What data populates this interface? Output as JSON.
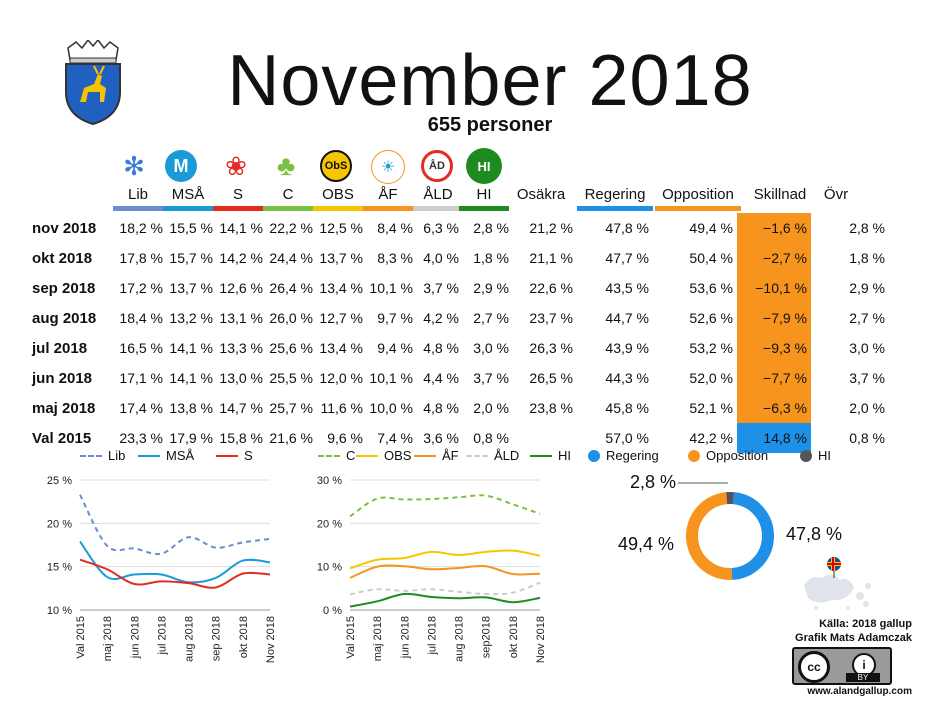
{
  "title": "November 2018",
  "subtitle": "655 personer",
  "colors": {
    "Lib": "#6b8ccf",
    "MSÅ": "#1a9bd7",
    "S": "#e32b20",
    "C": "#7ac143",
    "OBS": "#f7c600",
    "ÅF": "#f7941d",
    "ÅLD": "#cccccc",
    "HI": "#1f8a1f",
    "Regering": "#1e90e8",
    "Opposition": "#f7941d",
    "HIdonut": "#555555"
  },
  "icons": {
    "Lib": "snowflake-icon",
    "MSÅ": "m-logo-icon",
    "S": "rose-icon",
    "C": "clover-icon",
    "OBS": "obs-logo-icon",
    "ÅF": "af-logo-icon",
    "ÅLD": "ald-logo-icon",
    "HI": "hi-logo-icon"
  },
  "icon_text": {
    "OBS": "ObS",
    "ÅLD": "ÅD",
    "HI": "HI"
  },
  "table": {
    "headers": [
      "Lib",
      "MSÅ",
      "S",
      "C",
      "OBS",
      "ÅF",
      "ÅLD",
      "HI",
      "Osäkra",
      "Regering",
      "Opposition",
      "Skillnad",
      "Övr"
    ],
    "rows": [
      {
        "label": "nov 2018",
        "values": [
          "18,2 %",
          "15,5 %",
          "14,1 %",
          "22,2 %",
          "12,5 %",
          "8,4 %",
          "6,3 %",
          "2,8 %",
          "21,2 %",
          "47,8 %",
          "49,4 %",
          "−1,6 %",
          "2,8 %"
        ]
      },
      {
        "label": "okt 2018",
        "values": [
          "17,8 %",
          "15,7 %",
          "14,2 %",
          "24,4 %",
          "13,7 %",
          "8,3 %",
          "4,0 %",
          "1,8 %",
          "21,1 %",
          "47,7 %",
          "50,4 %",
          "−2,7 %",
          "1,8 %"
        ]
      },
      {
        "label": "sep 2018",
        "values": [
          "17,2 %",
          "13,7 %",
          "12,6 %",
          "26,4 %",
          "13,4 %",
          "10,1 %",
          "3,7 %",
          "2,9 %",
          "22,6 %",
          "43,5 %",
          "53,6 %",
          "−10,1 %",
          "2,9 %"
        ]
      },
      {
        "label": "aug 2018",
        "values": [
          "18,4 %",
          "13,2 %",
          "13,1 %",
          "26,0 %",
          "12,7 %",
          "9,7 %",
          "4,2 %",
          "2,7 %",
          "23,7 %",
          "44,7 %",
          "52,6 %",
          "−7,9 %",
          "2,7 %"
        ]
      },
      {
        "label": "jul 2018",
        "values": [
          "16,5 %",
          "14,1 %",
          "13,3 %",
          "25,6 %",
          "13,4 %",
          "9,4 %",
          "4,8 %",
          "3,0 %",
          "26,3 %",
          "43,9 %",
          "53,2 %",
          "−9,3 %",
          "3,0 %"
        ]
      },
      {
        "label": "jun 2018",
        "values": [
          "17,1 %",
          "14,1 %",
          "13,0 %",
          "25,5 %",
          "12,0 %",
          "10,1 %",
          "4,4 %",
          "3,7 %",
          "26,5 %",
          "44,3 %",
          "52,0 %",
          "−7,7 %",
          "3,7 %"
        ]
      },
      {
        "label": "maj 2018",
        "values": [
          "17,4 %",
          "13,8 %",
          "14,7 %",
          "25,7 %",
          "11,6 %",
          "10,0 %",
          "4,8 %",
          "2,0 %",
          "23,8 %",
          "45,8 %",
          "52,1 %",
          "−6,3 %",
          "2,0 %"
        ]
      },
      {
        "label": "Val 2015",
        "values": [
          "23,3 %",
          "17,9 %",
          "15,8 %",
          "21,6 %",
          "9,6 %",
          "7,4 %",
          "3,6 %",
          "0,8 %",
          "",
          "57,0 %",
          "42,2 %",
          "14,8 %",
          "0,8 %"
        ]
      }
    ]
  },
  "chart_data": [
    {
      "type": "line",
      "x": [
        "Val 2015",
        "maj 2018",
        "jun 2018",
        "jul 2018",
        "aug 2018",
        "sep 2018",
        "okt 2018",
        "Nov 2018"
      ],
      "yticks": [
        "10 %",
        "15 %",
        "20 %",
        "25 %"
      ],
      "ylim": [
        10,
        25
      ],
      "series": [
        {
          "name": "Lib",
          "values": [
            23.3,
            17.4,
            17.1,
            16.5,
            18.4,
            17.2,
            17.8,
            18.2
          ],
          "dash": true
        },
        {
          "name": "MSÅ",
          "values": [
            17.9,
            13.8,
            14.1,
            14.1,
            13.2,
            13.7,
            15.7,
            15.5
          ]
        },
        {
          "name": "S",
          "values": [
            15.8,
            14.7,
            13.0,
            13.3,
            13.1,
            12.6,
            14.2,
            14.1
          ]
        }
      ]
    },
    {
      "type": "line",
      "x": [
        "Val 2015",
        "maj 2018",
        "jun 2018",
        "jul 2018",
        "aug 2018",
        "sep2018",
        "okt 2018",
        "Nov 2018"
      ],
      "yticks": [
        "0 %",
        "10 %",
        "20 %",
        "30 %"
      ],
      "ylim": [
        0,
        30
      ],
      "series": [
        {
          "name": "C",
          "values": [
            21.6,
            25.7,
            25.5,
            25.6,
            26.0,
            26.4,
            24.4,
            22.2
          ],
          "dash": true
        },
        {
          "name": "OBS",
          "values": [
            9.6,
            11.6,
            12.0,
            13.4,
            12.7,
            13.4,
            13.7,
            12.5
          ]
        },
        {
          "name": "ÅF",
          "values": [
            7.4,
            10.0,
            10.1,
            9.4,
            9.7,
            10.1,
            8.3,
            8.4
          ]
        },
        {
          "name": "ÅLD",
          "values": [
            3.6,
            4.8,
            4.4,
            4.8,
            4.2,
            3.7,
            4.0,
            6.3
          ],
          "dash": true
        },
        {
          "name": "HI",
          "values": [
            0.8,
            2.0,
            3.7,
            3.0,
            2.7,
            2.9,
            1.8,
            2.8
          ]
        }
      ]
    },
    {
      "type": "pie",
      "labels": [
        "Regering",
        "Opposition",
        "HI"
      ],
      "values": [
        47.8,
        49.4,
        2.8
      ],
      "value_labels": [
        "47,8 %",
        "49,4 %",
        "2,8 %"
      ]
    }
  ],
  "credits": {
    "source": "Källa: 2018 gallup",
    "author": "Grafik Mats Adamczak",
    "license": "BY",
    "url": "www.alandgallup.com"
  }
}
